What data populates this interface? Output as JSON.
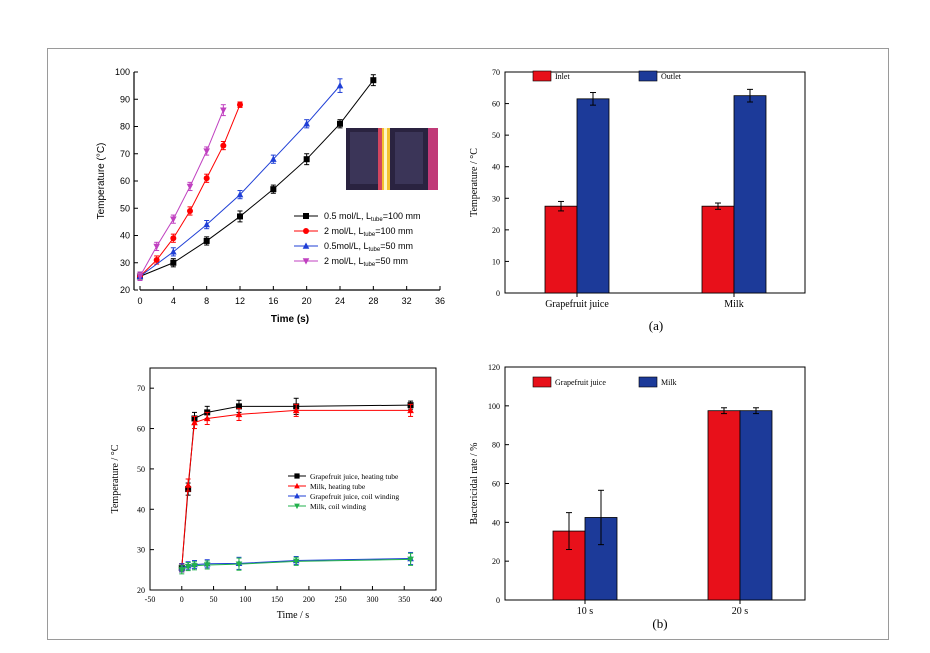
{
  "figure": {
    "panel_a_caption": "(a)",
    "panel_b_caption": "(b)"
  },
  "chart_data": [
    {
      "id": "top-left",
      "type": "line",
      "xlabel": "Time (s)",
      "ylabel": "Temperature (°C)",
      "xlim": [
        0,
        36
      ],
      "ylim": [
        20,
        100
      ],
      "xticks": [
        0,
        4,
        8,
        12,
        16,
        20,
        24,
        28,
        32,
        36
      ],
      "yticks": [
        20,
        30,
        40,
        50,
        60,
        70,
        80,
        90,
        100
      ],
      "legend_position": "middle-right",
      "inset": "thermal image of heating tubes",
      "series": [
        {
          "name": "0.5 mol/L, L",
          "sub": "tube",
          "suffix": "=100 mm",
          "color": "#000000",
          "marker": "square",
          "x": [
            0,
            4,
            8,
            12,
            16,
            20,
            24,
            28
          ],
          "y": [
            25,
            30,
            38,
            47,
            57,
            68,
            81,
            97
          ],
          "err": [
            1.5,
            1.5,
            1.5,
            2,
            1.5,
            2,
            1.5,
            2
          ]
        },
        {
          "name": "2 mol/L, L",
          "sub": "tube",
          "suffix": "=100 mm",
          "color": "#ff0000",
          "marker": "circle",
          "x": [
            0,
            2,
            4,
            6,
            8,
            10,
            12
          ],
          "y": [
            25,
            31,
            39,
            49,
            61,
            73,
            88
          ],
          "err": [
            1.5,
            1.5,
            1.5,
            1.5,
            1.5,
            1.5,
            1
          ]
        },
        {
          "name": "0.5mol/L, L",
          "sub": "tube",
          "suffix": "=50 mm",
          "color": "#1f3fd6",
          "marker": "triangle-up",
          "x": [
            0,
            4,
            8,
            12,
            16,
            20,
            24
          ],
          "y": [
            25,
            34,
            44,
            55,
            68,
            81,
            95
          ],
          "err": [
            1.5,
            1.5,
            1.5,
            1.5,
            1.5,
            1.5,
            2.5
          ]
        },
        {
          "name": "2 mol/L, L",
          "sub": "tube",
          "suffix": "=50 mm",
          "color": "#c040c0",
          "marker": "triangle-down",
          "x": [
            0,
            2,
            4,
            6,
            8,
            10
          ],
          "y": [
            25,
            36,
            46,
            58,
            71,
            86
          ],
          "err": [
            1.5,
            1.5,
            1.5,
            1.5,
            1.5,
            2
          ]
        }
      ]
    },
    {
      "id": "top-right",
      "type": "bar",
      "xlabel": "",
      "ylabel": "Temperature / °C",
      "ylim": [
        0,
        70
      ],
      "yticks": [
        0,
        10,
        20,
        30,
        40,
        50,
        60,
        70
      ],
      "categories": [
        "Grapefruit juice",
        "Milk"
      ],
      "legend_position": "top-left",
      "series": [
        {
          "name": "Inlet",
          "color": "#e8101a",
          "values": [
            27.5,
            27.5
          ],
          "err": [
            1.5,
            1
          ]
        },
        {
          "name": "Outlet",
          "color": "#1c3a99",
          "values": [
            61.5,
            62.5
          ],
          "err": [
            2,
            2
          ]
        }
      ]
    },
    {
      "id": "bottom-left",
      "type": "line",
      "xlabel": "Time / s",
      "ylabel": "Temperature / °C",
      "xlim": [
        -50,
        400
      ],
      "ylim": [
        20,
        75
      ],
      "xticks": [
        -50,
        0,
        50,
        100,
        150,
        200,
        250,
        300,
        350,
        400
      ],
      "yticks": [
        20,
        30,
        40,
        50,
        60,
        70
      ],
      "legend_position": "middle-right",
      "series": [
        {
          "name": "Grapefruit juice, heating tube",
          "color": "#000000",
          "marker": "square",
          "x": [
            0,
            10,
            20,
            40,
            90,
            180,
            360
          ],
          "y": [
            25.5,
            45,
            62.5,
            64,
            65.5,
            65.5,
            65.8
          ],
          "err": [
            1,
            1.5,
            1.5,
            1.5,
            1.5,
            2,
            1
          ]
        },
        {
          "name": "Milk, heating tube",
          "color": "#ff0000",
          "marker": "triangle-up",
          "x": [
            0,
            10,
            20,
            40,
            90,
            180,
            360
          ],
          "y": [
            25.5,
            46,
            61.5,
            62.5,
            63.5,
            64.5,
            64.5
          ],
          "err": [
            1,
            1.5,
            1.5,
            1.5,
            1.5,
            1.5,
            1.5
          ]
        },
        {
          "name": "Grapefruit juice, coil winding",
          "color": "#1f3fd6",
          "marker": "triangle-up",
          "x": [
            0,
            10,
            20,
            40,
            90,
            180,
            360
          ],
          "y": [
            25.5,
            26,
            26.3,
            26.5,
            26.6,
            27.3,
            27.8
          ],
          "err": [
            1,
            1,
            1,
            1,
            1.5,
            1,
            1.5
          ]
        },
        {
          "name": "Milk, coil winding",
          "color": "#22b14c",
          "marker": "triangle-down",
          "x": [
            0,
            10,
            20,
            40,
            90,
            180,
            360
          ],
          "y": [
            25,
            25.8,
            26,
            26.2,
            26.4,
            27.1,
            27.6
          ],
          "err": [
            1,
            1,
            1,
            1,
            1.5,
            1,
            1.5
          ]
        }
      ]
    },
    {
      "id": "bottom-right",
      "type": "bar",
      "xlabel": "",
      "ylabel": "Bactericidal rate / %",
      "ylim": [
        0,
        120
      ],
      "yticks": [
        0,
        20,
        40,
        60,
        80,
        100,
        120
      ],
      "categories": [
        "10 s",
        "20 s"
      ],
      "legend_position": "top-left",
      "series": [
        {
          "name": "Grapefruit juice",
          "color": "#e8101a",
          "values": [
            35.5,
            97.5
          ],
          "err": [
            9.5,
            1.5
          ]
        },
        {
          "name": "Milk",
          "color": "#1c3a99",
          "values": [
            42.5,
            97.5
          ],
          "err": [
            14,
            1.5
          ]
        }
      ]
    }
  ]
}
